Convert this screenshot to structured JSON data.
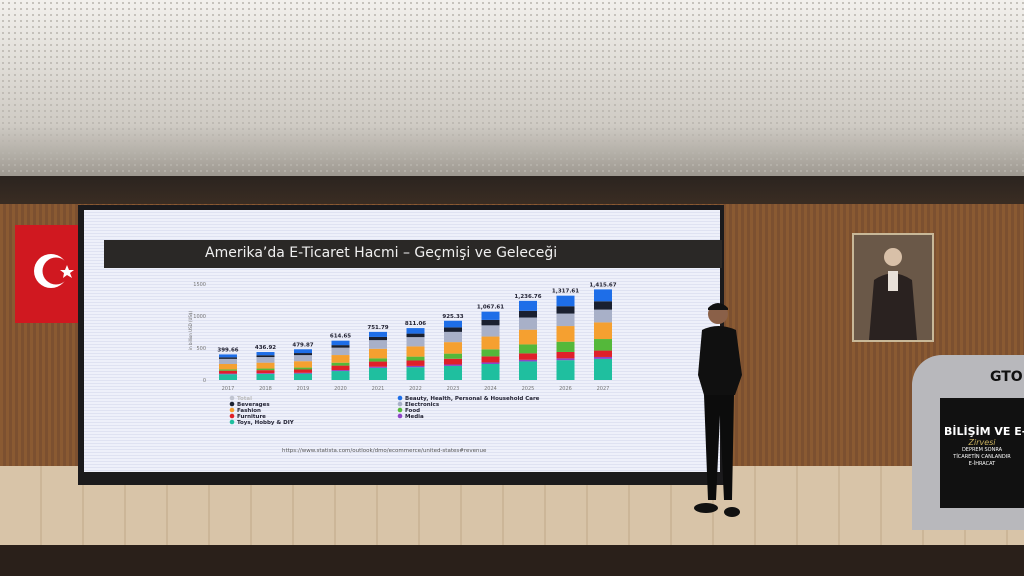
{
  "slide": {
    "title": "Amerika’da E-Ticaret Hacmi – Geçmişi ve Geleceği",
    "source": "https://www.statista.com/outlook/dmo/ecommerce/united-states#revenue"
  },
  "podium": {
    "title": "BİLİŞİM VE E-Ti",
    "subtitle": "Zirvesi",
    "line1": "DEPREM SONRA",
    "line2": "TİCARETİN CANLANDIR",
    "line3": "E-İHRACAT",
    "logo": "GTO"
  },
  "chart_data": {
    "type": "bar",
    "stacked": true,
    "title": "",
    "xlabel": "",
    "ylabel": "in billion USD (US$)",
    "ylim": [
      0,
      1500
    ],
    "yticks": [
      0,
      500,
      1000,
      1500
    ],
    "grid": false,
    "legend_placement": "bottom",
    "categories": [
      "2017",
      "2018",
      "2019",
      "2020",
      "2021",
      "2022",
      "2023",
      "2024",
      "2025",
      "2026",
      "2027"
    ],
    "totals": [
      "399.66",
      "436.92",
      "479.87",
      "614.65",
      "751.79",
      "811.06",
      "925.33",
      "1,067.61",
      "1,236.76",
      "1,317.61",
      "1,415.67"
    ],
    "series": [
      {
        "name": "Toys, Hobby & DIY",
        "color": "#1fbf9f",
        "values": [
          90,
          95,
          100,
          140,
          190,
          200,
          220,
          250,
          290,
          310,
          330
        ]
      },
      {
        "name": "Media",
        "color": "#8e44c8",
        "values": [
          10,
          11,
          12,
          15,
          18,
          20,
          22,
          24,
          26,
          28,
          30
        ]
      },
      {
        "name": "Furniture",
        "color": "#e0202a",
        "values": [
          45,
          48,
          52,
          70,
          80,
          85,
          90,
          95,
          100,
          100,
          100
        ]
      },
      {
        "name": "Food",
        "color": "#54b83a",
        "values": [
          20,
          25,
          30,
          45,
          50,
          60,
          80,
          110,
          140,
          160,
          180
        ]
      },
      {
        "name": "Fashion",
        "color": "#f5a030",
        "values": [
          85,
          92,
          100,
          120,
          150,
          160,
          180,
          200,
          230,
          245,
          260
        ]
      },
      {
        "name": "Electronics",
        "color": "#a8b0c8",
        "values": [
          80,
          88,
          95,
          115,
          135,
          145,
          160,
          175,
          190,
          195,
          200
        ]
      },
      {
        "name": "Beverages",
        "color": "#1a2030",
        "values": [
          25,
          28,
          32,
          40,
          50,
          55,
          70,
          85,
          105,
          115,
          130
        ]
      },
      {
        "name": "Beauty, Health, Personal & Household Care",
        "color": "#1e6ee8",
        "values": [
          44.66,
          49.92,
          58.87,
          69.65,
          78.79,
          86.06,
          103.33,
          128.61,
          155.76,
          164.61,
          185.67
        ]
      }
    ],
    "legend": {
      "left": [
        {
          "name": "Total",
          "color": "#c0c4d0"
        },
        {
          "name": "Beverages",
          "color": "#1a2030"
        },
        {
          "name": "Fashion",
          "color": "#f5a030"
        },
        {
          "name": "Furniture",
          "color": "#e0202a"
        },
        {
          "name": "Toys, Hobby & DIY",
          "color": "#1fbf9f"
        }
      ],
      "right": [
        {
          "name": "Beauty, Health, Personal & Household Care",
          "color": "#1e6ee8"
        },
        {
          "name": "Electronics",
          "color": "#a8b0c8"
        },
        {
          "name": "Food",
          "color": "#54b83a"
        },
        {
          "name": "Media",
          "color": "#8e44c8"
        }
      ]
    }
  }
}
